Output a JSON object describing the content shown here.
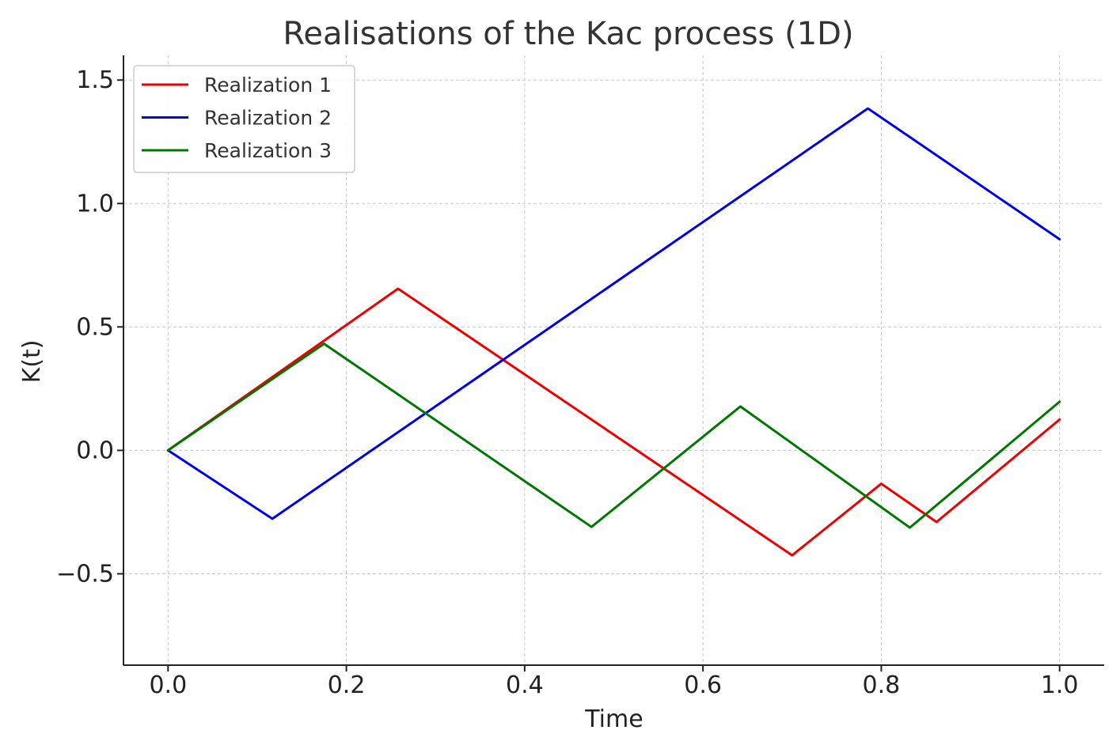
{
  "chart_data": {
    "type": "line",
    "title": "Realisations of the Kac process (1D)",
    "xlabel": "Time",
    "ylabel": "K(t)",
    "xlim": [
      -0.05,
      1.05
    ],
    "ylim": [
      -0.87,
      1.6
    ],
    "xticks": [
      0.0,
      0.2,
      0.4,
      0.6,
      0.8,
      1.0
    ],
    "xtick_labels": [
      "0.0",
      "0.2",
      "0.4",
      "0.6",
      "0.8",
      "1.0"
    ],
    "yticks": [
      -0.5,
      0.0,
      0.5,
      1.0,
      1.5
    ],
    "ytick_labels": [
      "−0.5",
      "0.0",
      "0.5",
      "1.0",
      "1.5"
    ],
    "grid": true,
    "legend_position": "top-left",
    "series": [
      {
        "name": "Realization 1",
        "color": "#ee0000",
        "x": [
          0.0,
          0.258,
          0.7,
          0.8,
          0.862,
          1.0
        ],
        "y": [
          0.0,
          0.655,
          -0.425,
          -0.135,
          -0.29,
          0.125
        ]
      },
      {
        "name": "Realization 2",
        "color": "#0000ee",
        "x": [
          0.0,
          0.117,
          0.785,
          1.0
        ],
        "y": [
          0.0,
          -0.277,
          1.385,
          0.855
        ]
      },
      {
        "name": "Realization 3",
        "color": "#007700",
        "x": [
          0.0,
          0.175,
          0.475,
          0.642,
          0.832,
          1.0
        ],
        "y": [
          0.0,
          0.432,
          -0.31,
          0.178,
          -0.313,
          0.197
        ]
      }
    ]
  }
}
